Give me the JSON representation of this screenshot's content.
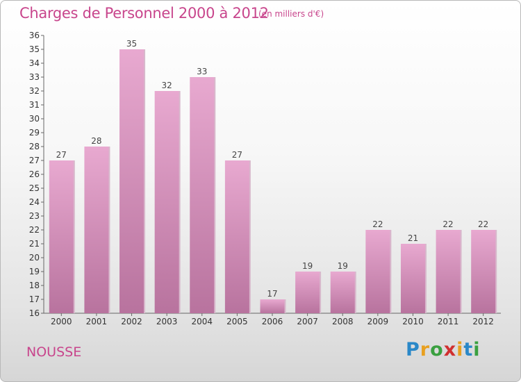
{
  "title": "Charges de Personnel 2000 à 2012",
  "subtitle": "(en milliers d'€)",
  "commune": "NOUSSE",
  "logo": {
    "letters": [
      "P",
      "r",
      "o",
      "x",
      "i",
      "t",
      "i"
    ],
    "colors": [
      "#2a88c8",
      "#e8a020",
      "#3aa040",
      "#d03030",
      "#e8a020",
      "#2a88c8",
      "#3aa040"
    ]
  },
  "colors": {
    "bar_top": "#e8a9d0",
    "bar_bottom": "#b8739e",
    "title": "#c8458c"
  },
  "chart_data": {
    "type": "bar",
    "categories": [
      "2000",
      "2001",
      "2002",
      "2003",
      "2004",
      "2005",
      "2006",
      "2007",
      "2008",
      "2009",
      "2010",
      "2011",
      "2012"
    ],
    "values": [
      27,
      28,
      35,
      32,
      33,
      27,
      17,
      19,
      19,
      22,
      21,
      22,
      22
    ],
    "ylim": [
      16,
      36
    ],
    "yticks": [
      16,
      17,
      18,
      19,
      20,
      21,
      22,
      23,
      24,
      25,
      26,
      27,
      28,
      29,
      30,
      31,
      32,
      33,
      34,
      35,
      36
    ],
    "grid": false
  }
}
